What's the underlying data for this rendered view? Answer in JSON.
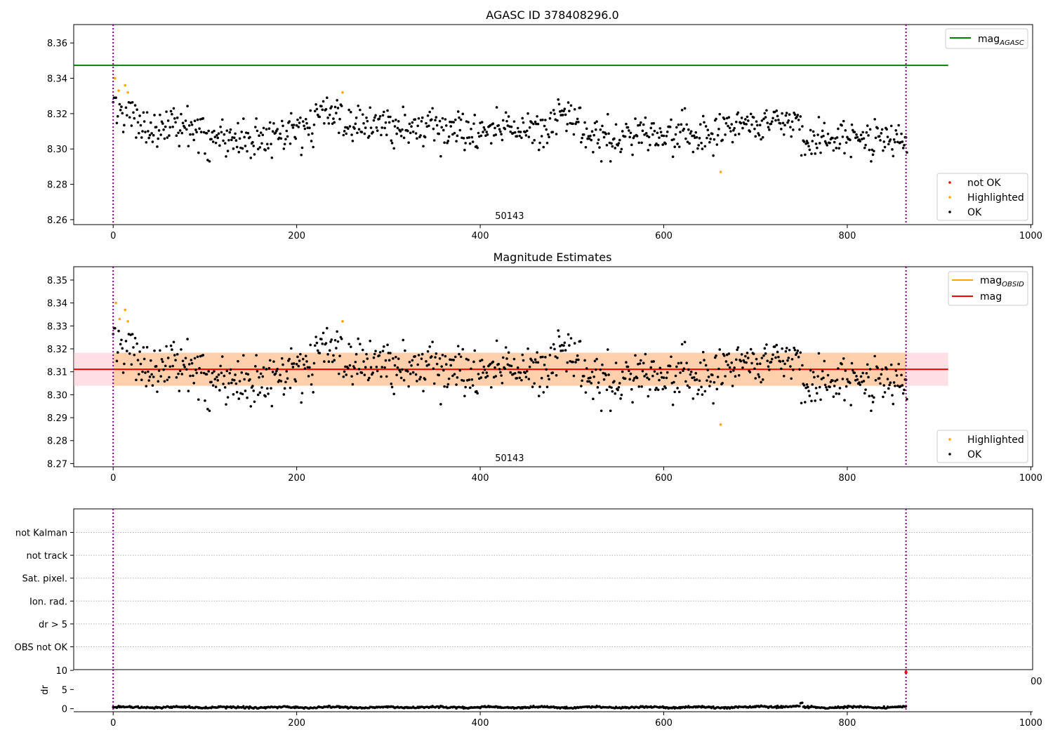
{
  "chart_data": [
    {
      "type": "scatter",
      "title": "AGASC ID 378408296.0",
      "xlim": [
        -43,
        1002
      ],
      "ylim": [
        8.2572,
        8.3704
      ],
      "xticks": [
        0,
        200,
        400,
        600,
        800,
        1000
      ],
      "yticks": [
        8.26,
        8.28,
        8.3,
        8.32,
        8.34,
        8.36
      ],
      "annotation": {
        "text": "50143",
        "x": 432
      },
      "vlines": [
        0,
        864
      ],
      "lines": [
        {
          "name": "mag_AGASC",
          "label_main": "mag",
          "label_sub": "AGASC",
          "y": 8.3473,
          "x": [
            -43,
            910
          ],
          "color": "#008000"
        }
      ],
      "series_legend": [
        {
          "name": "not OK",
          "color": "#ff0000"
        },
        {
          "name": "Highlighted",
          "color": "#ffa500"
        },
        {
          "name": "OK",
          "color": "#000000"
        }
      ],
      "highlighted": [
        [
          2,
          8.34
        ],
        [
          6,
          8.333
        ],
        [
          13,
          8.336
        ],
        [
          16,
          8.332
        ],
        [
          250,
          8.332
        ],
        [
          662,
          8.287
        ]
      ],
      "legend": "top-right / lower-right"
    },
    {
      "type": "scatter",
      "title": "Magnitude Estimates",
      "xlim": [
        -43,
        1002
      ],
      "ylim": [
        8.2686,
        8.3558
      ],
      "xticks": [
        0,
        200,
        400,
        600,
        800,
        1000
      ],
      "yticks": [
        8.27,
        8.28,
        8.29,
        8.3,
        8.31,
        8.32,
        8.33,
        8.34,
        8.35
      ],
      "annotation": {
        "text": "50143",
        "x": 432
      },
      "vlines": [
        0,
        864
      ],
      "mag": 8.3111,
      "band": [
        8.3039,
        8.3183
      ],
      "lines": [
        {
          "name": "mag_OBSID",
          "label_main": "mag",
          "label_sub": "OBSID",
          "color": "#ffa500"
        },
        {
          "name": "mag",
          "label_main": "mag",
          "label_sub": "",
          "color": "#ff0000"
        }
      ],
      "series_legend": [
        {
          "name": "Highlighted",
          "color": "#ffa500"
        },
        {
          "name": "OK",
          "color": "#000000"
        }
      ],
      "highlighted": [
        [
          3,
          8.34
        ],
        [
          7,
          8.333
        ],
        [
          13,
          8.337
        ],
        [
          16,
          8.332
        ],
        [
          250,
          8.332
        ],
        [
          662,
          8.287
        ]
      ],
      "legend": "top-right / lower-right"
    },
    {
      "type": "scatter",
      "title": "",
      "categories": [
        "not Kalman",
        "not track",
        "Sat. pixel.",
        "Ion. rad.",
        "dr > 5",
        "OBS not OK"
      ],
      "xlim": [
        -43,
        1002
      ],
      "vlines": [
        0,
        864
      ],
      "grid": true
    },
    {
      "type": "scatter",
      "title": "",
      "ylabel": "dr",
      "xlim": [
        -43,
        1002
      ],
      "ylim": [
        -0.8,
        10.2
      ],
      "xticks": [
        0,
        200,
        400,
        600,
        800,
        1000
      ],
      "yticks": [
        0,
        5,
        10
      ],
      "clipped_tick_text": "00",
      "vlines": [
        0,
        864
      ],
      "outlier": [
        864,
        9.5
      ]
    }
  ],
  "seed": 50143,
  "n_points": 866,
  "segments": [
    [
      0,
      4,
      8.331
    ],
    [
      4,
      25,
      8.323
    ],
    [
      25,
      55,
      8.311
    ],
    [
      55,
      100,
      8.313
    ],
    [
      100,
      150,
      8.306
    ],
    [
      150,
      190,
      8.305
    ],
    [
      190,
      220,
      8.311
    ],
    [
      220,
      250,
      8.322
    ],
    [
      250,
      300,
      8.314
    ],
    [
      300,
      400,
      8.311
    ],
    [
      400,
      480,
      8.311
    ],
    [
      480,
      510,
      8.318
    ],
    [
      510,
      560,
      8.307
    ],
    [
      560,
      620,
      8.308
    ],
    [
      620,
      660,
      8.309
    ],
    [
      660,
      700,
      8.313
    ],
    [
      700,
      750,
      8.315
    ],
    [
      750,
      800,
      8.305
    ],
    [
      800,
      866,
      8.306
    ]
  ]
}
